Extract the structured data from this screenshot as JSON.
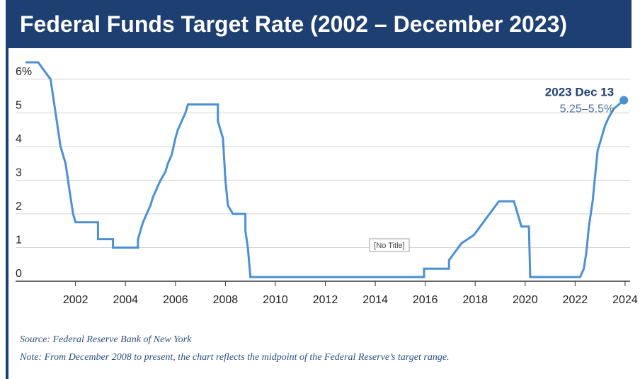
{
  "header": {
    "title": "Federal Funds Target Rate (2002 – December 2023)"
  },
  "chart_data": {
    "type": "line",
    "title": "Federal Funds Target Rate (2002 – December 2023)",
    "center_label": "[No Title]",
    "xlim": [
      1999.6,
      2024.2
    ],
    "ylim": [
      0,
      6.5
    ],
    "x_ticks": [
      "2002",
      "2004",
      "2006",
      "2008",
      "2010",
      "2012",
      "2014",
      "2016",
      "2018",
      "2020",
      "2022",
      "2024"
    ],
    "y_ticks": [
      {
        "value": 0,
        "label": "0"
      },
      {
        "value": 1,
        "label": "1"
      },
      {
        "value": 2,
        "label": "2"
      },
      {
        "value": 3,
        "label": "3"
      },
      {
        "value": 4,
        "label": "4"
      },
      {
        "value": 5,
        "label": "5"
      },
      {
        "value": 6,
        "label": "6%"
      }
    ],
    "grid": "horizontal",
    "line_color": "#4a90d2",
    "series": [
      {
        "points": [
          [
            2000.0,
            6.5
          ],
          [
            2000.5,
            6.5
          ],
          [
            2001.0,
            6.0
          ],
          [
            2001.1,
            5.5
          ],
          [
            2001.2,
            5.0
          ],
          [
            2001.3,
            4.5
          ],
          [
            2001.4,
            4.0
          ],
          [
            2001.5,
            3.75
          ],
          [
            2001.6,
            3.5
          ],
          [
            2001.7,
            3.0
          ],
          [
            2001.8,
            2.5
          ],
          [
            2001.9,
            2.0
          ],
          [
            2002.0,
            1.75
          ],
          [
            2002.9,
            1.75
          ],
          [
            2002.9,
            1.25
          ],
          [
            2003.5,
            1.25
          ],
          [
            2003.5,
            1.0
          ],
          [
            2004.5,
            1.0
          ],
          [
            2004.5,
            1.25
          ],
          [
            2004.6,
            1.5
          ],
          [
            2004.7,
            1.75
          ],
          [
            2004.85,
            2.0
          ],
          [
            2005.0,
            2.25
          ],
          [
            2005.1,
            2.5
          ],
          [
            2005.25,
            2.75
          ],
          [
            2005.4,
            3.0
          ],
          [
            2005.6,
            3.25
          ],
          [
            2005.7,
            3.5
          ],
          [
            2005.85,
            3.75
          ],
          [
            2006.0,
            4.25
          ],
          [
            2006.1,
            4.5
          ],
          [
            2006.25,
            4.75
          ],
          [
            2006.4,
            5.0
          ],
          [
            2006.5,
            5.25
          ],
          [
            2007.7,
            5.25
          ],
          [
            2007.7,
            4.75
          ],
          [
            2007.8,
            4.5
          ],
          [
            2007.9,
            4.25
          ],
          [
            2008.0,
            3.0
          ],
          [
            2008.1,
            2.25
          ],
          [
            2008.3,
            2.0
          ],
          [
            2008.8,
            2.0
          ],
          [
            2008.8,
            1.5
          ],
          [
            2008.9,
            1.0
          ],
          [
            2009.0,
            0.125
          ],
          [
            2015.95,
            0.125
          ],
          [
            2015.95,
            0.375
          ],
          [
            2016.95,
            0.375
          ],
          [
            2016.95,
            0.625
          ],
          [
            2017.2,
            0.875
          ],
          [
            2017.45,
            1.125
          ],
          [
            2017.95,
            1.375
          ],
          [
            2018.2,
            1.625
          ],
          [
            2018.45,
            1.875
          ],
          [
            2018.7,
            2.125
          ],
          [
            2018.95,
            2.375
          ],
          [
            2019.55,
            2.375
          ],
          [
            2019.65,
            2.125
          ],
          [
            2019.75,
            1.875
          ],
          [
            2019.85,
            1.625
          ],
          [
            2020.15,
            1.625
          ],
          [
            2020.2,
            0.125
          ],
          [
            2022.2,
            0.125
          ],
          [
            2022.35,
            0.375
          ],
          [
            2022.45,
            0.875
          ],
          [
            2022.55,
            1.625
          ],
          [
            2022.7,
            2.375
          ],
          [
            2022.8,
            3.125
          ],
          [
            2022.9,
            3.875
          ],
          [
            2023.1,
            4.375
          ],
          [
            2023.2,
            4.625
          ],
          [
            2023.35,
            4.875
          ],
          [
            2023.55,
            5.125
          ],
          [
            2023.95,
            5.375
          ]
        ]
      }
    ],
    "annotation": {
      "date": "2023 Dec 13",
      "value": "5.25–5.5%",
      "x": 2023.95,
      "y": 5.375
    }
  },
  "footer": {
    "source": "Source: Federal Reserve Bank of New York",
    "note": "Note: From December 2008 to present, the chart reflects the midpoint of the Federal Reserve’s target range."
  }
}
